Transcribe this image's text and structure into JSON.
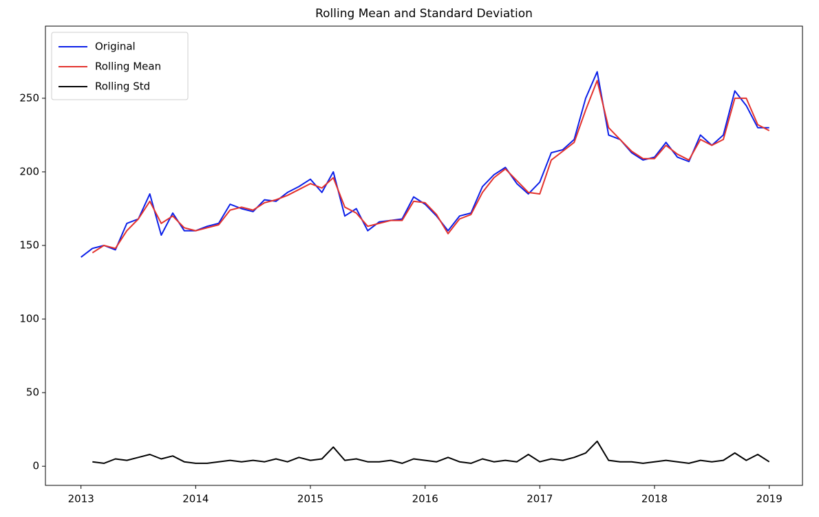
{
  "chart_data": {
    "type": "line",
    "title": "Rolling Mean and Standard Deviation",
    "x": [
      2013.0,
      2013.1,
      2013.2,
      2013.3,
      2013.4,
      2013.5,
      2013.6,
      2013.7,
      2013.8,
      2013.9,
      2014.0,
      2014.1,
      2014.2,
      2014.3,
      2014.4,
      2014.5,
      2014.6,
      2014.7,
      2014.8,
      2014.9,
      2015.0,
      2015.1,
      2015.2,
      2015.3,
      2015.4,
      2015.5,
      2015.6,
      2015.7,
      2015.8,
      2015.9,
      2016.0,
      2016.1,
      2016.2,
      2016.3,
      2016.4,
      2016.5,
      2016.6,
      2016.7,
      2016.8,
      2016.9,
      2017.0,
      2017.1,
      2017.2,
      2017.3,
      2017.4,
      2017.5,
      2017.6,
      2017.7,
      2017.8,
      2017.9,
      2018.0,
      2018.1,
      2018.2,
      2018.3,
      2018.4,
      2018.5,
      2018.6,
      2018.7,
      2018.8,
      2018.9,
      2019.0
    ],
    "series": [
      {
        "name": "Original",
        "color": "#0a1ee8",
        "values": [
          142,
          148,
          150,
          147,
          165,
          168,
          185,
          157,
          172,
          160,
          160,
          163,
          165,
          178,
          175,
          173,
          181,
          180,
          186,
          190,
          195,
          186,
          200,
          170,
          175,
          160,
          166,
          167,
          168,
          183,
          178,
          170,
          160,
          170,
          172,
          190,
          198,
          203,
          192,
          185,
          193,
          213,
          215,
          222,
          250,
          268,
          225,
          222,
          213,
          208,
          210,
          220,
          210,
          207,
          225,
          218,
          225,
          255,
          245,
          230,
          230
        ]
      },
      {
        "name": "Rolling Mean",
        "color": "#e3312b",
        "values": [
          null,
          145,
          150,
          148,
          160,
          168,
          180,
          165,
          170,
          162,
          160,
          162,
          164,
          174,
          176,
          174,
          179,
          181,
          184,
          188,
          192,
          189,
          196,
          176,
          172,
          163,
          165,
          167,
          167,
          180,
          179,
          171,
          158,
          168,
          171,
          186,
          196,
          202,
          194,
          186,
          185,
          208,
          214,
          220,
          242,
          262,
          230,
          222,
          214,
          209,
          209,
          218,
          212,
          208,
          222,
          218,
          222,
          250,
          250,
          232,
          228
        ]
      },
      {
        "name": "Rolling Std",
        "color": "#000000",
        "values": [
          null,
          3,
          2,
          5,
          4,
          6,
          8,
          5,
          7,
          3,
          2,
          2,
          3,
          4,
          3,
          4,
          3,
          5,
          3,
          6,
          4,
          5,
          13,
          4,
          5,
          3,
          3,
          4,
          2,
          5,
          4,
          3,
          6,
          3,
          2,
          5,
          3,
          4,
          3,
          8,
          3,
          5,
          4,
          6,
          9,
          17,
          4,
          3,
          3,
          2,
          3,
          4,
          3,
          2,
          4,
          3,
          4,
          9,
          4,
          8,
          3
        ]
      }
    ],
    "xlim": [
      2012.69,
      2019.29
    ],
    "xticks": [
      2013,
      2014,
      2015,
      2016,
      2017,
      2018,
      2019
    ],
    "ylim": [
      -13,
      299
    ],
    "yticks": [
      0,
      50,
      100,
      150,
      200,
      250
    ],
    "legend": "upper left"
  }
}
